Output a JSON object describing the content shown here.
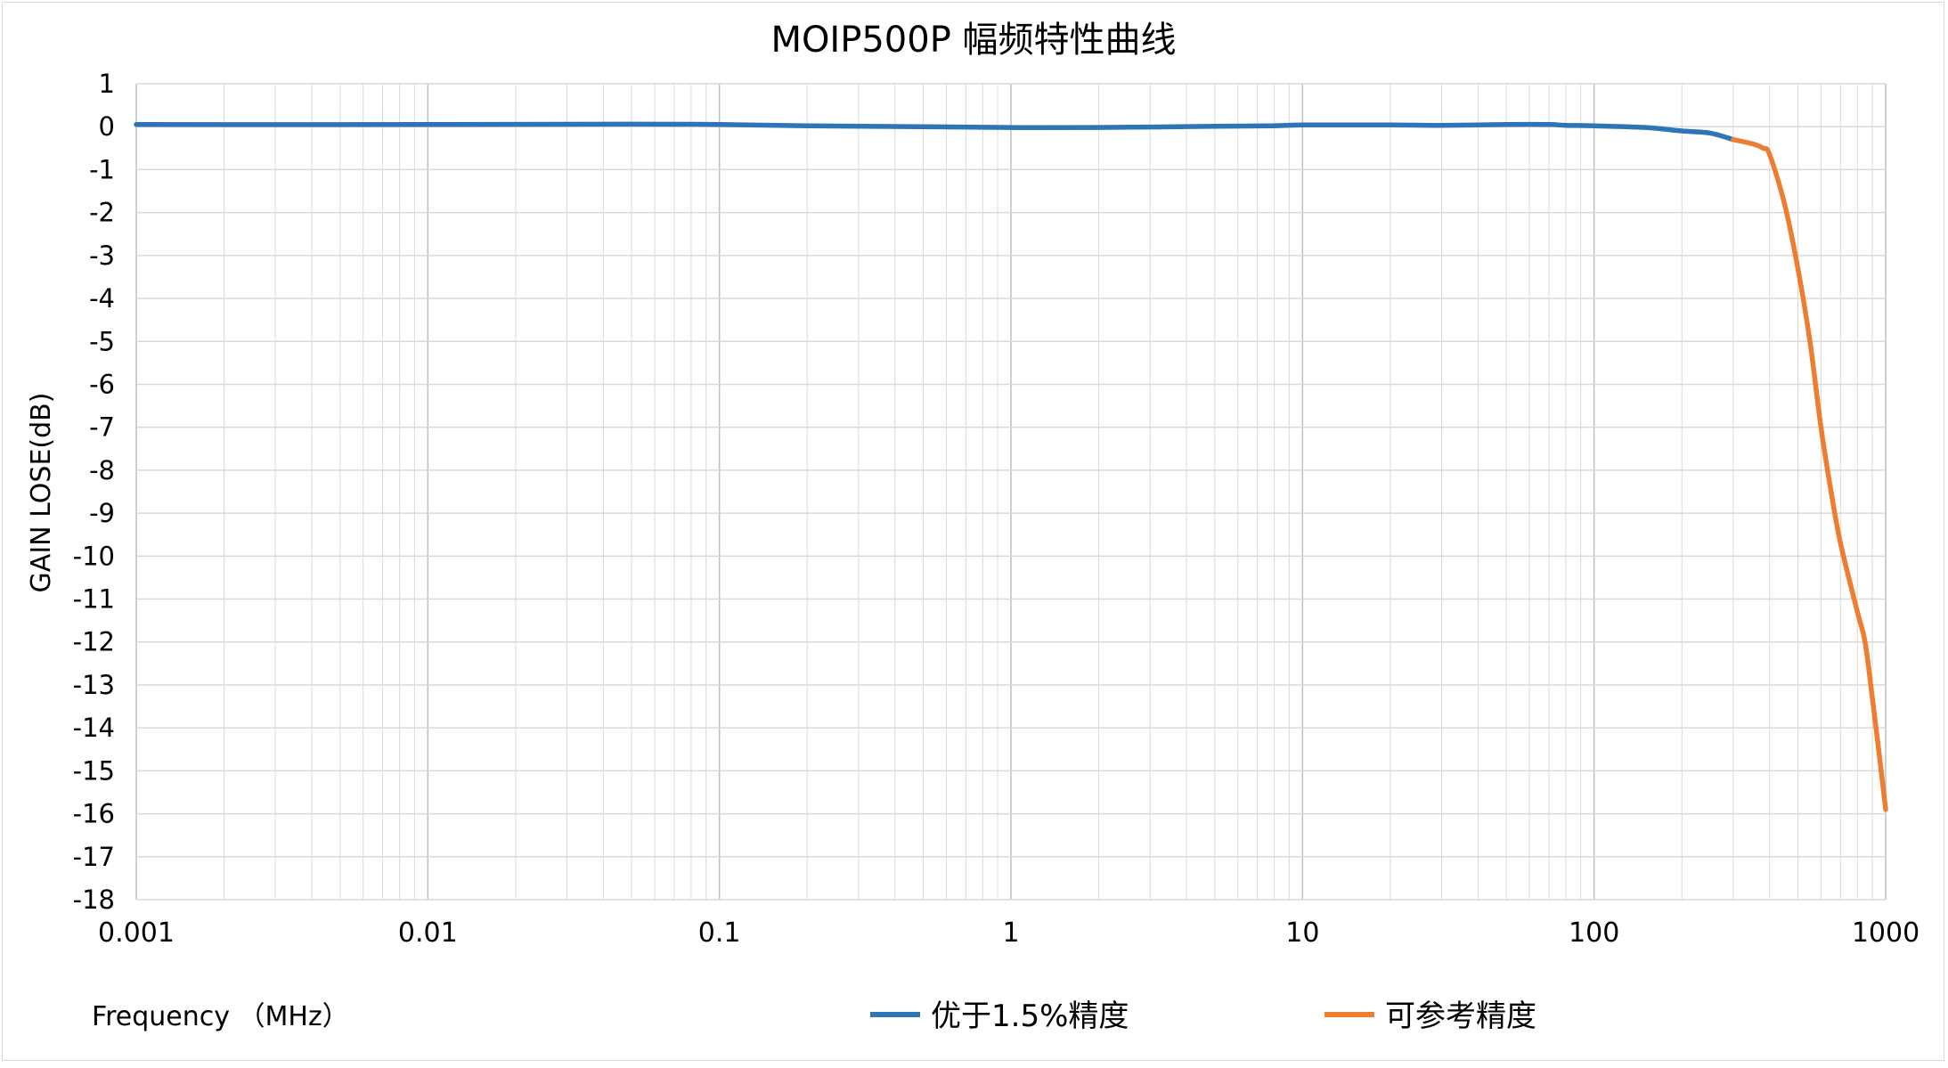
{
  "chart_data": {
    "type": "line",
    "title": "MOIP500P 幅频特性曲线",
    "xlabel": "Frequency （MHz）",
    "ylabel": "GAIN LOSE(dB)",
    "x_scale": "log",
    "xlim": [
      0.001,
      1000
    ],
    "ylim": [
      -18,
      1
    ],
    "x_ticks": [
      0.001,
      0.01,
      0.1,
      1,
      10,
      100,
      1000
    ],
    "x_tick_labels": [
      "0.001",
      "0.01",
      "0.1",
      "1",
      "10",
      "100",
      "1000"
    ],
    "y_ticks": [
      1,
      0,
      -1,
      -2,
      -3,
      -4,
      -5,
      -6,
      -7,
      -8,
      -9,
      -10,
      -11,
      -12,
      -13,
      -14,
      -15,
      -16,
      -17,
      -18
    ],
    "y_tick_labels": [
      "1",
      "0",
      "-1",
      "-2",
      "-3",
      "-4",
      "-5",
      "-6",
      "-7",
      "-8",
      "-9",
      "-10",
      "-11",
      "-12",
      "-13",
      "-14",
      "-15",
      "-16",
      "-17",
      "-18"
    ],
    "grid": true,
    "legend_position": "bottom",
    "series": [
      {
        "name": "优于1.5%精度",
        "color": "#2e75b6",
        "x": [
          0.001,
          0.01,
          0.05,
          0.1,
          0.2,
          0.5,
          1,
          2,
          5,
          8,
          10,
          20,
          30,
          50,
          70,
          80,
          100,
          150,
          200,
          250,
          300
        ],
        "y": [
          0.05,
          0.05,
          0.06,
          0.05,
          0.02,
          0.0,
          -0.02,
          -0.02,
          0.01,
          0.02,
          0.04,
          0.04,
          0.03,
          0.05,
          0.05,
          0.03,
          0.02,
          -0.02,
          -0.1,
          -0.15,
          -0.3
        ]
      },
      {
        "name": "可参考精度",
        "color": "#ed7d31",
        "x": [
          300,
          350,
          380,
          400,
          450,
          500,
          550,
          600,
          650,
          700,
          800,
          850,
          900,
          950,
          1000
        ],
        "y": [
          -0.3,
          -0.4,
          -0.5,
          -0.65,
          -1.8,
          -3.3,
          -5.0,
          -7.0,
          -8.5,
          -9.7,
          -11.3,
          -12.0,
          -13.3,
          -14.6,
          -15.9
        ]
      }
    ]
  }
}
